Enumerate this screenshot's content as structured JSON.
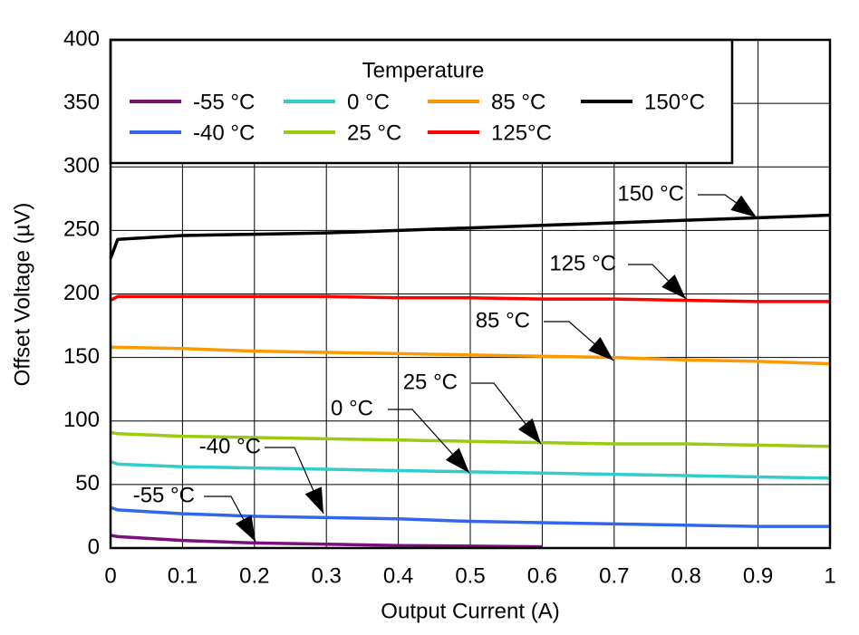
{
  "chart_data": {
    "type": "line",
    "x_label": "Output Current (A)",
    "y_label": "Offset Voltage (µV)",
    "legend_title": "Temperature",
    "x": [
      0,
      0.01,
      0.1,
      0.2,
      0.3,
      0.4,
      0.5,
      0.6,
      0.7,
      0.8,
      0.9,
      1
    ],
    "series": [
      {
        "name": "-55 °C",
        "color": "#7b0f7b",
        "values": [
          10,
          9,
          6,
          4,
          3,
          2,
          1.5,
          1,
          null,
          null,
          null,
          null
        ]
      },
      {
        "name": "-40 °C",
        "color": "#3366ee",
        "values": [
          32,
          30,
          27,
          25,
          24,
          23,
          21,
          20,
          19,
          18,
          17,
          17
        ]
      },
      {
        "name": "0 °C",
        "color": "#33cccc",
        "values": [
          68,
          66,
          64,
          63,
          62,
          61,
          60,
          59,
          58,
          57,
          56,
          55
        ]
      },
      {
        "name": "25 °C",
        "color": "#99cc11",
        "values": [
          91,
          90,
          88,
          87,
          86,
          85,
          84,
          83,
          82,
          82,
          81,
          80
        ]
      },
      {
        "name": "85 °C",
        "color": "#ff9900",
        "values": [
          158,
          158,
          157,
          155,
          154,
          153,
          152,
          151,
          150,
          148,
          147,
          145
        ]
      },
      {
        "name": "125°C",
        "color": "#ff0000",
        "values": [
          195,
          198,
          198,
          198,
          198,
          197,
          197,
          196,
          196,
          195,
          194,
          194
        ]
      },
      {
        "name": "150°C",
        "color": "#000000",
        "values": [
          228,
          243,
          246,
          247,
          248,
          250,
          252,
          254,
          256,
          258,
          260,
          262
        ]
      }
    ],
    "annotations": [
      "150 °C",
      "125 °C",
      "85 °C",
      "25 °C",
      "0 °C",
      "-40 °C",
      "-55 °C"
    ],
    "xlim": [
      0,
      1
    ],
    "xticks": [
      0,
      0.1,
      0.2,
      0.3,
      0.4,
      0.5,
      0.6,
      0.7,
      0.8,
      0.9,
      1
    ],
    "ylim": [
      0,
      400
    ],
    "yticks": [
      0,
      50,
      100,
      150,
      200,
      250,
      300,
      350,
      400
    ],
    "grid": true
  }
}
